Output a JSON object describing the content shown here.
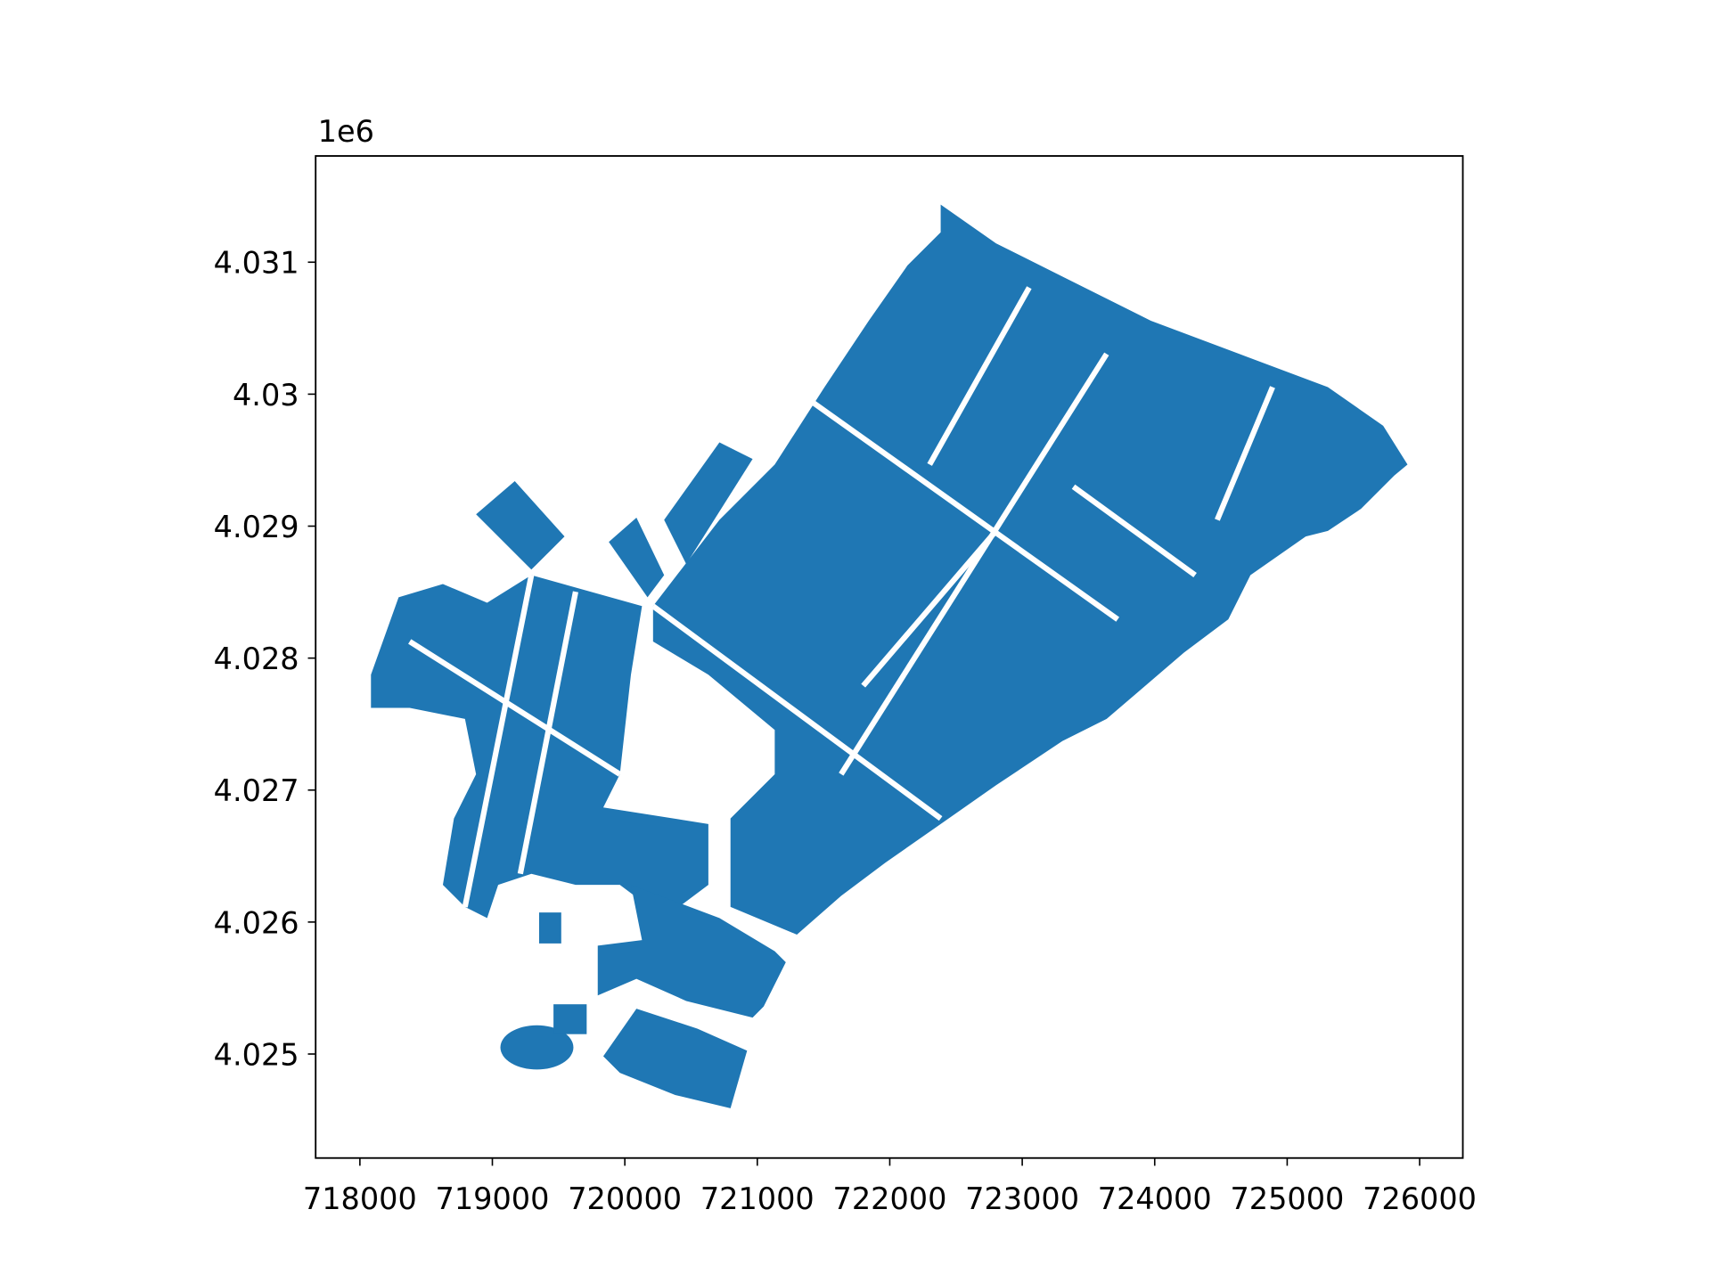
{
  "chart_data": {
    "type": "map",
    "color": "#1f77b4",
    "xlim": [
      717666,
      726326
    ],
    "ylim": [
      4.024212,
      4.031805
    ],
    "xticks": [
      718000,
      719000,
      720000,
      721000,
      722000,
      723000,
      724000,
      725000,
      726000
    ],
    "yticks": [
      4.025,
      4.026,
      4.027,
      4.028,
      4.029,
      4.03,
      4.031
    ],
    "y_offset_text": "1e6"
  }
}
